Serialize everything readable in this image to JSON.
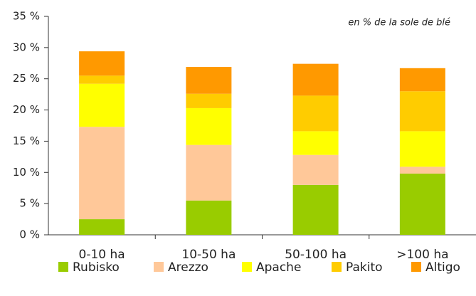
{
  "chart_data": {
    "type": "stacked_bar",
    "annotation": "en % de la sole de blé",
    "categories": [
      "0-10 ha",
      "10-50 ha",
      "50-100 ha",
      ">100 ha"
    ],
    "series": [
      {
        "name": "Rubisko",
        "color": "#99cc00",
        "values": [
          2.5,
          5.5,
          8.0,
          9.8
        ]
      },
      {
        "name": "Arezzo",
        "color": "#ffc899",
        "values": [
          14.8,
          8.9,
          4.8,
          1.1
        ]
      },
      {
        "name": "Apache",
        "color": "#ffff00",
        "values": [
          6.9,
          5.9,
          3.8,
          5.7
        ]
      },
      {
        "name": "Pakito",
        "color": "#ffcc00",
        "values": [
          1.3,
          2.3,
          5.7,
          6.4
        ]
      },
      {
        "name": "Altigo",
        "color": "#ff9900",
        "values": [
          3.9,
          4.3,
          5.1,
          3.7
        ]
      }
    ],
    "ylim": [
      0,
      35
    ],
    "yticks": [
      {
        "value": 0,
        "label": "0 %"
      },
      {
        "value": 5,
        "label": "5 %"
      },
      {
        "value": 10,
        "label": "10 %"
      },
      {
        "value": 15,
        "label": "15 %"
      },
      {
        "value": 20,
        "label": "20 %"
      },
      {
        "value": 25,
        "label": "25 %"
      },
      {
        "value": 30,
        "label": "30 %"
      },
      {
        "value": 35,
        "label": "35 %"
      }
    ]
  }
}
